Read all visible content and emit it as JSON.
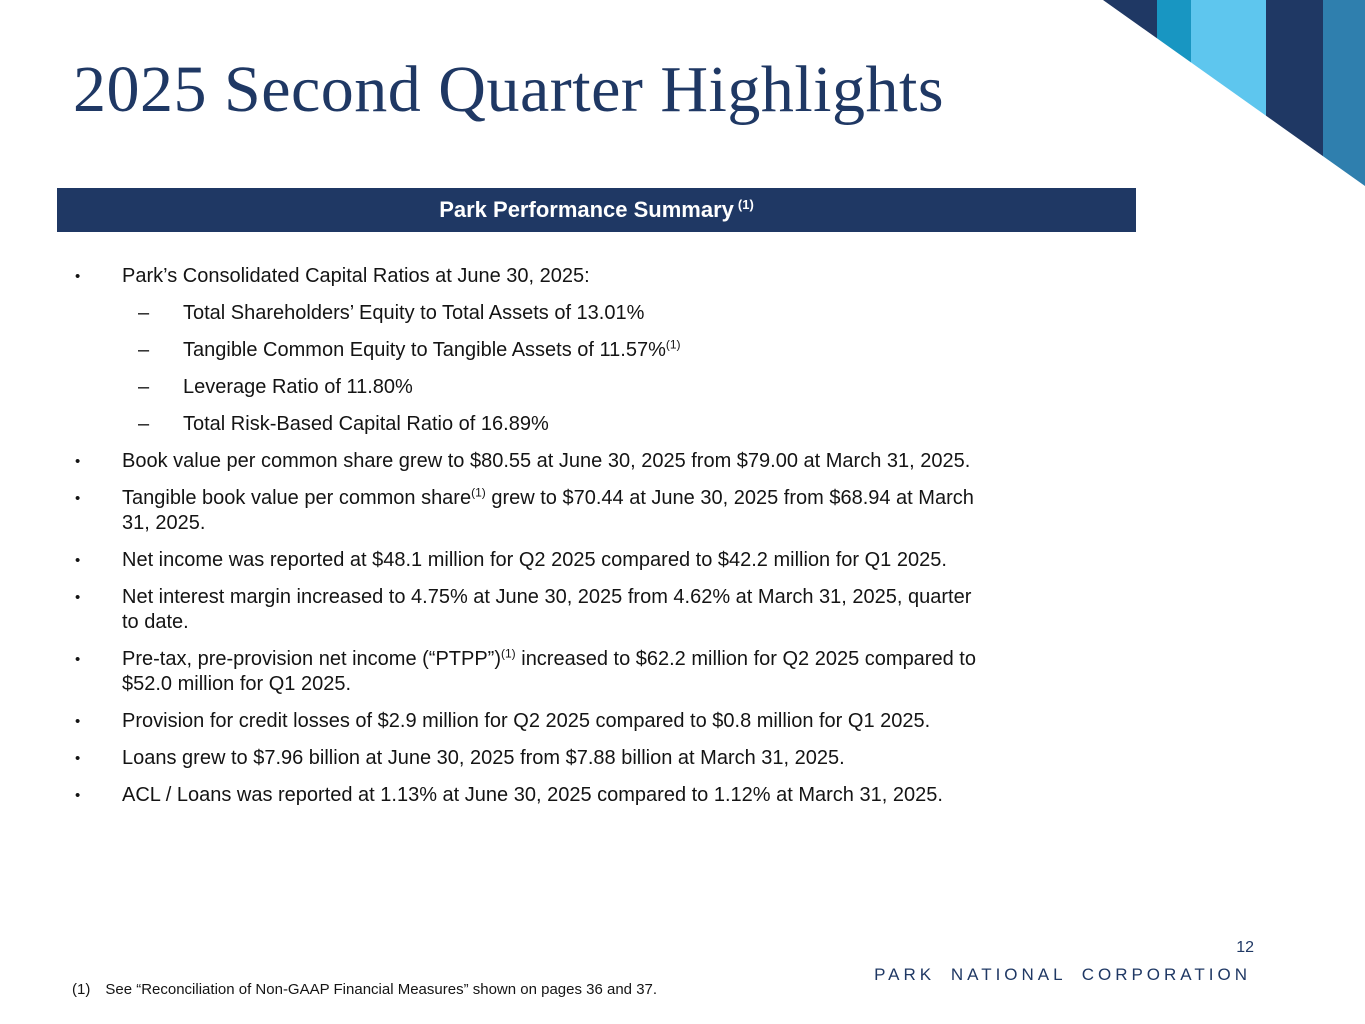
{
  "slide": {
    "title": "2025 Second Quarter Highlights",
    "page_number": "12",
    "company": "PARK NATIONAL CORPORATION"
  },
  "summary_header": {
    "title": "Park Performance Summary",
    "superscript": "(1)"
  },
  "markers": {
    "level1": "•",
    "level2": "–"
  },
  "bullets": [
    {
      "level": 1,
      "segments": [
        {
          "text": "Park’s Consolidated Capital Ratios at June 30, 2025:"
        }
      ]
    },
    {
      "level": 2,
      "segments": [
        {
          "text": "Total Shareholders’ Equity to Total Assets of 13.01%"
        }
      ]
    },
    {
      "level": 2,
      "segments": [
        {
          "text": "Tangible Common Equity to Tangible Assets of 11.57%"
        },
        {
          "text": "(1)",
          "sup": true
        }
      ]
    },
    {
      "level": 2,
      "segments": [
        {
          "text": "Leverage Ratio of 11.80%"
        }
      ]
    },
    {
      "level": 2,
      "segments": [
        {
          "text": "Total Risk-Based Capital Ratio of 16.89%"
        }
      ]
    },
    {
      "level": 1,
      "segments": [
        {
          "text": "Book value per common share grew to $80.55 at June 30, 2025 from $79.00 at March 31, 2025."
        }
      ]
    },
    {
      "level": 1,
      "segments": [
        {
          "text": "Tangible book value per common share"
        },
        {
          "text": "(1)",
          "sup": true
        },
        {
          "text": " grew to $70.44 at June 30, 2025 from $68.94 at March"
        },
        {
          "br": true
        },
        {
          "text": "31, 2025."
        }
      ]
    },
    {
      "level": 1,
      "segments": [
        {
          "text": "Net income was reported at $48.1 million for Q2 2025 compared to $42.2 million for Q1 2025."
        }
      ]
    },
    {
      "level": 1,
      "segments": [
        {
          "text": "Net interest margin increased to 4.75% at June 30, 2025 from 4.62% at March 31, 2025, quarter"
        },
        {
          "br": true
        },
        {
          "text": "to date."
        }
      ]
    },
    {
      "level": 1,
      "segments": [
        {
          "text": "Pre-tax, pre-provision net income (“PTPP”)"
        },
        {
          "text": "(1)",
          "sup": true
        },
        {
          "text": " increased to $62.2 million for Q2 2025 compared to"
        },
        {
          "br": true
        },
        {
          "text": "$52.0 million for Q1 2025."
        }
      ]
    },
    {
      "level": 1,
      "segments": [
        {
          "text": "Provision for credit losses of $2.9 million for Q2 2025 compared to $0.8 million for Q1 2025."
        }
      ]
    },
    {
      "level": 1,
      "segments": [
        {
          "text": "Loans grew to $7.96 billion at June 30, 2025 from $7.88 billion at March 31, 2025."
        }
      ]
    },
    {
      "level": 1,
      "segments": [
        {
          "text": "ACL / Loans was reported at 1.13% at June 30, 2025 compared to 1.12% at March 31, 2025."
        }
      ]
    }
  ],
  "footnote": {
    "marker": "(1)",
    "text": "See “Reconciliation of Non-GAAP Financial Measures” shown on pages 36 and 37."
  },
  "colors": {
    "navy": "#1F3864",
    "body_text": "#141414",
    "header_bar_bg": "#1F3864",
    "header_bar_text": "#FFFFFF"
  },
  "decoration": {
    "stripe_colors": [
      "#1F3864",
      "#1896C2",
      "#5EC6EE",
      "#1F3864",
      "#2F7FAE"
    ]
  }
}
